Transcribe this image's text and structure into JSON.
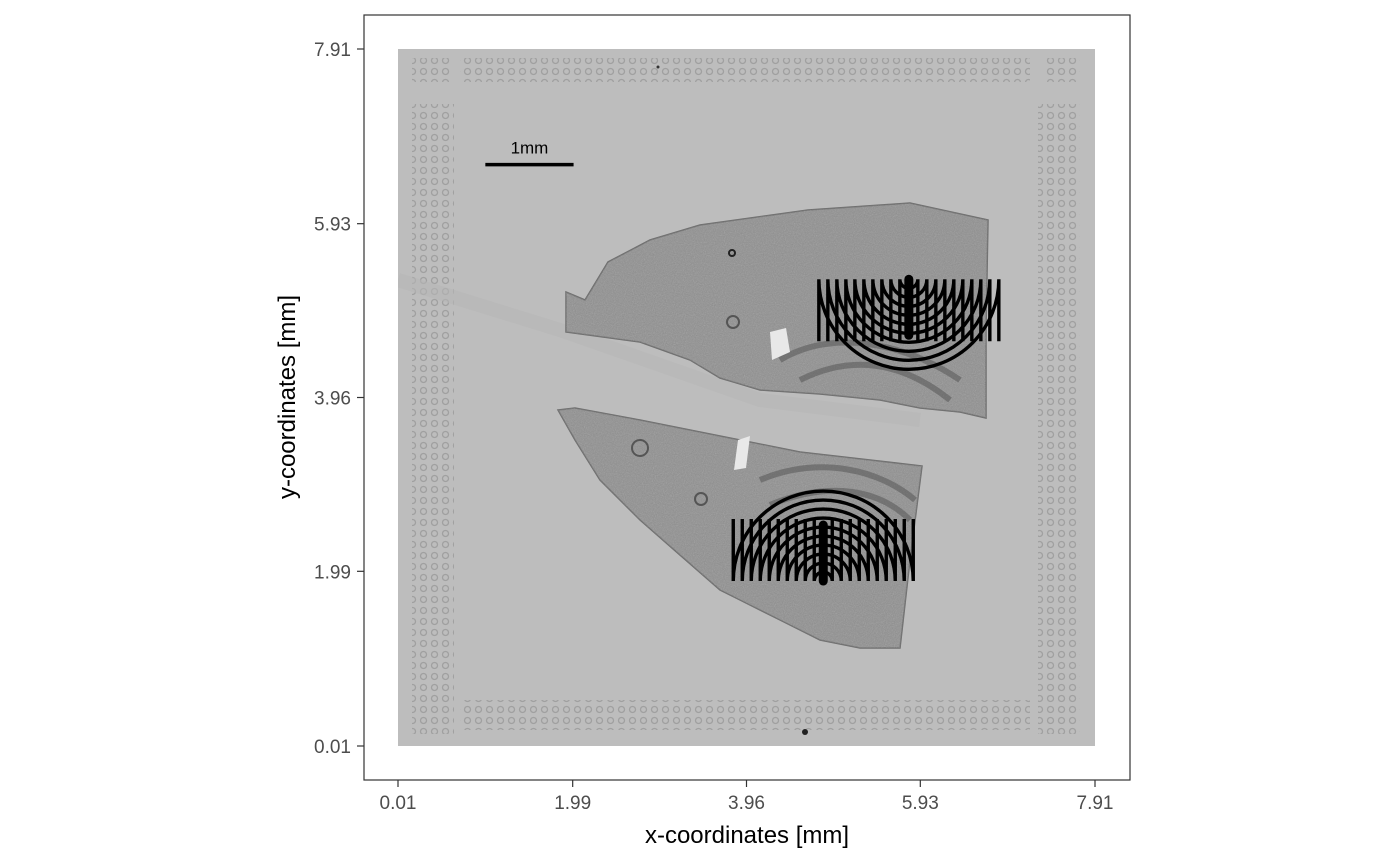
{
  "chart_data": {
    "type": "image",
    "xlabel": "x-coordinates [mm]",
    "ylabel": "y-coordinates [mm]",
    "xlim": [
      0.01,
      7.91
    ],
    "ylim": [
      0.01,
      7.91
    ],
    "x_ticks": [
      "0.01",
      "1.99",
      "3.96",
      "5.93",
      "7.91"
    ],
    "y_ticks": [
      "0.01",
      "1.99",
      "3.96",
      "5.93",
      "7.91"
    ],
    "scalebar": {
      "label": "1mm",
      "length_mm": 1,
      "from": [
        1.0,
        6.6
      ]
    },
    "grid": false,
    "annotations": [
      {
        "type": "spiral",
        "center": [
          5.8,
          5.3
        ],
        "direction": "opens-downward",
        "rings": 10
      },
      {
        "type": "spiral",
        "center": [
          4.83,
          1.88
        ],
        "direction": "opens-upward",
        "rings": 10
      }
    ],
    "colors": {
      "background": "#bfbfbf",
      "spiral": "#000000",
      "panel_border": "#333333"
    }
  }
}
